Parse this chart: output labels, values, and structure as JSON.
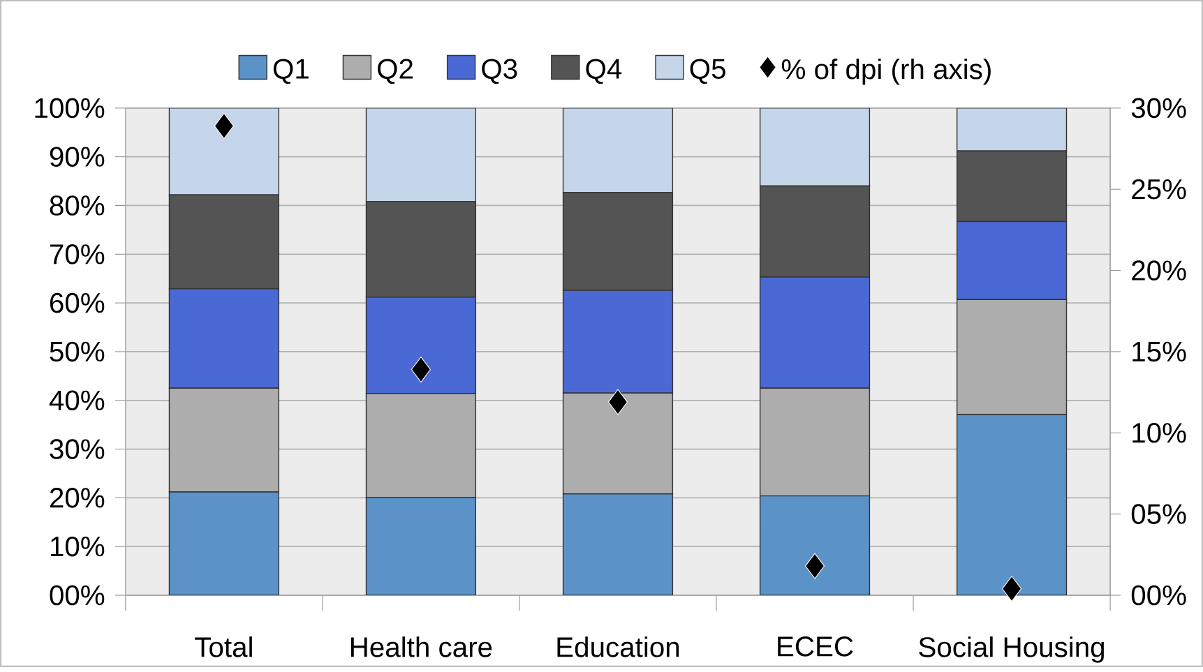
{
  "chart_data": {
    "type": "bar",
    "stacked": true,
    "grid": "y",
    "legend": "top",
    "categories": [
      "Total",
      "Health care",
      "Education",
      "ECEC",
      "Social Housing"
    ],
    "series": [
      {
        "name": "Q1",
        "color": "#5b93c9",
        "values": [
          21.2,
          20.1,
          20.8,
          20.4,
          37.1
        ]
      },
      {
        "name": "Q2",
        "color": "#adadad",
        "values": [
          21.3,
          21.3,
          20.7,
          22.1,
          23.6
        ]
      },
      {
        "name": "Q3",
        "color": "#4a69d4",
        "values": [
          20.4,
          19.8,
          21.1,
          22.8,
          16.0
        ]
      },
      {
        "name": "Q4",
        "color": "#545454",
        "values": [
          19.3,
          19.6,
          20.1,
          18.7,
          14.5
        ]
      },
      {
        "name": "Q5",
        "color": "#c5d6ea",
        "values": [
          17.8,
          19.2,
          17.3,
          16.0,
          8.8
        ]
      },
      {
        "name": "% of dpi (rh axis)",
        "type": "scatter",
        "axis": "y2",
        "marker": "diamond",
        "color": "#000000",
        "values": [
          28.9,
          13.9,
          11.9,
          1.8,
          0.4
        ]
      }
    ],
    "ylim": [
      0,
      100
    ],
    "yticks": [
      {
        "value": 0,
        "label": "00%"
      },
      {
        "value": 10,
        "label": "10%"
      },
      {
        "value": 20,
        "label": "20%"
      },
      {
        "value": 30,
        "label": "30%"
      },
      {
        "value": 40,
        "label": "40%"
      },
      {
        "value": 50,
        "label": "50%"
      },
      {
        "value": 60,
        "label": "60%"
      },
      {
        "value": 70,
        "label": "70%"
      },
      {
        "value": 80,
        "label": "80%"
      },
      {
        "value": 90,
        "label": "90%"
      },
      {
        "value": 100,
        "label": "100%"
      }
    ],
    "y2lim": [
      0,
      30
    ],
    "y2ticks": [
      {
        "value": 0,
        "label": "00%"
      },
      {
        "value": 5,
        "label": "05%"
      },
      {
        "value": 10,
        "label": "10%"
      },
      {
        "value": 15,
        "label": "15%"
      },
      {
        "value": 20,
        "label": "20%"
      },
      {
        "value": 25,
        "label": "25%"
      },
      {
        "value": 30,
        "label": "30%"
      }
    ]
  }
}
